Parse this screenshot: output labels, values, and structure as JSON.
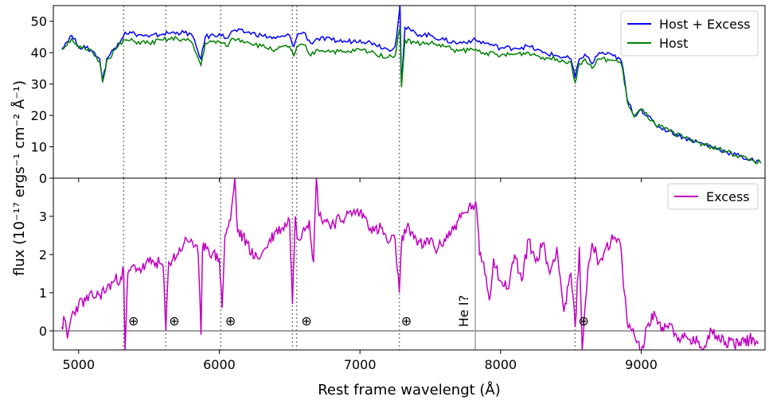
{
  "chart_data": [
    {
      "panel": "top",
      "type": "line",
      "xlim": [
        4820,
        9880
      ],
      "ylim": [
        0,
        55
      ],
      "xticks": [
        5000,
        6000,
        7000,
        8000,
        9000
      ],
      "yticks": [
        0,
        10,
        20,
        30,
        40,
        50
      ],
      "legend": {
        "placement": "top-right",
        "entries": [
          "Host + Excess",
          "Host"
        ]
      },
      "series": [
        {
          "name": "Host + Excess",
          "color": "#0000ff",
          "points": [
            [
              4880,
              41.5
            ],
            [
              4950,
              45.5
            ],
            [
              5000,
              42
            ],
            [
              5050,
              41.5
            ],
            [
              5100,
              40.5
            ],
            [
              5150,
              38
            ],
            [
              5170,
              31
            ],
            [
              5200,
              38
            ],
            [
              5280,
              43
            ],
            [
              5330,
              46.5
            ],
            [
              5400,
              46
            ],
            [
              5500,
              45
            ],
            [
              5600,
              46
            ],
            [
              5700,
              46.5
            ],
            [
              5800,
              46
            ],
            [
              5870,
              38
            ],
            [
              5900,
              45
            ],
            [
              6000,
              46
            ],
            [
              6050,
              44.5
            ],
            [
              6100,
              47
            ],
            [
              6200,
              46.5
            ],
            [
              6300,
              45.5
            ],
            [
              6400,
              44.5
            ],
            [
              6500,
              45.5
            ],
            [
              6530,
              42
            ],
            [
              6560,
              46
            ],
            [
              6600,
              46.5
            ],
            [
              6650,
              43
            ],
            [
              6700,
              44.5
            ],
            [
              6800,
              44
            ],
            [
              6900,
              43.5
            ],
            [
              7000,
              44
            ],
            [
              7100,
              43
            ],
            [
              7200,
              41
            ],
            [
              7250,
              42
            ],
            [
              7270,
              49
            ],
            [
              7285,
              55
            ],
            [
              7295,
              29.5
            ],
            [
              7320,
              48
            ],
            [
              7400,
              46
            ],
            [
              7500,
              45.5
            ],
            [
              7600,
              44
            ],
            [
              7700,
              43
            ],
            [
              7800,
              44
            ],
            [
              7900,
              43
            ],
            [
              8000,
              41.5
            ],
            [
              8100,
              41.5
            ],
            [
              8200,
              42
            ],
            [
              8300,
              40
            ],
            [
              8400,
              39
            ],
            [
              8500,
              38
            ],
            [
              8530,
              32
            ],
            [
              8560,
              38
            ],
            [
              8600,
              39.5
            ],
            [
              8650,
              36.5
            ],
            [
              8700,
              40
            ],
            [
              8800,
              39
            ],
            [
              8850,
              38
            ],
            [
              8870,
              35
            ],
            [
              8900,
              25
            ],
            [
              8950,
              20
            ],
            [
              9000,
              22
            ],
            [
              9100,
              17
            ],
            [
              9200,
              15
            ],
            [
              9300,
              13
            ],
            [
              9400,
              11.5
            ],
            [
              9500,
              10
            ],
            [
              9600,
              8.5
            ],
            [
              9700,
              7
            ],
            [
              9800,
              5.5
            ],
            [
              9850,
              4.8
            ]
          ]
        },
        {
          "name": "Host",
          "color": "#008000",
          "points": [
            [
              4880,
              41
            ],
            [
              4950,
              44.5
            ],
            [
              5000,
              41.5
            ],
            [
              5050,
              41
            ],
            [
              5100,
              40
            ],
            [
              5150,
              37
            ],
            [
              5170,
              30.5
            ],
            [
              5200,
              37.5
            ],
            [
              5280,
              42
            ],
            [
              5330,
              44
            ],
            [
              5400,
              43.5
            ],
            [
              5500,
              43
            ],
            [
              5600,
              44
            ],
            [
              5700,
              44.5
            ],
            [
              5800,
              43.5
            ],
            [
              5870,
              36
            ],
            [
              5900,
              43
            ],
            [
              6000,
              43.5
            ],
            [
              6050,
              42
            ],
            [
              6100,
              44.5
            ],
            [
              6200,
              43.5
            ],
            [
              6300,
              42
            ],
            [
              6400,
              41
            ],
            [
              6500,
              42
            ],
            [
              6530,
              39
            ],
            [
              6560,
              42
            ],
            [
              6600,
              42.5
            ],
            [
              6650,
              39
            ],
            [
              6700,
              41
            ],
            [
              6800,
              40.5
            ],
            [
              6900,
              40
            ],
            [
              7000,
              41
            ],
            [
              7100,
              40
            ],
            [
              7200,
              38.5
            ],
            [
              7250,
              39
            ],
            [
              7270,
              45
            ],
            [
              7285,
              48
            ],
            [
              7295,
              29
            ],
            [
              7320,
              44
            ],
            [
              7400,
              43
            ],
            [
              7500,
              43
            ],
            [
              7600,
              42
            ],
            [
              7700,
              40.5
            ],
            [
              7800,
              41
            ],
            [
              7900,
              40
            ],
            [
              8000,
              39
            ],
            [
              8100,
              39.5
            ],
            [
              8200,
              40
            ],
            [
              8300,
              38.5
            ],
            [
              8400,
              38
            ],
            [
              8500,
              37
            ],
            [
              8530,
              30.5
            ],
            [
              8560,
              36.5
            ],
            [
              8600,
              38
            ],
            [
              8650,
              35
            ],
            [
              8700,
              38
            ],
            [
              8800,
              37.5
            ],
            [
              8850,
              37
            ],
            [
              8870,
              34
            ],
            [
              8900,
              24.5
            ],
            [
              8950,
              19.5
            ],
            [
              9000,
              22
            ],
            [
              9100,
              17
            ],
            [
              9200,
              15
            ],
            [
              9300,
              13
            ],
            [
              9400,
              11.5
            ],
            [
              9500,
              10
            ],
            [
              9600,
              8.5
            ],
            [
              9700,
              7
            ],
            [
              9800,
              5.5
            ],
            [
              9850,
              4.8
            ]
          ]
        }
      ]
    },
    {
      "panel": "bottom",
      "type": "line",
      "xlim": [
        4820,
        9880
      ],
      "ylim": [
        -0.5,
        4.0
      ],
      "xticks": [
        5000,
        6000,
        7000,
        8000,
        9000
      ],
      "yticks": [
        0,
        1,
        2,
        3
      ],
      "xlabel": "Rest frame wavelengt (Å)",
      "shared_ylabel": "flux (10⁻¹⁷ ergs⁻¹ cm⁻² Å⁻¹)",
      "legend": {
        "placement": "top-right",
        "entries": [
          "Excess"
        ]
      },
      "series": [
        {
          "name": "Excess",
          "color": "#bf00bf",
          "points": [
            [
              4880,
              0.1
            ],
            [
              4900,
              0.3
            ],
            [
              4920,
              -0.2
            ],
            [
              4950,
              0.4
            ],
            [
              5000,
              0.7
            ],
            [
              5050,
              0.8
            ],
            [
              5100,
              0.9
            ],
            [
              5150,
              0.95
            ],
            [
              5200,
              1.1
            ],
            [
              5250,
              1.3
            ],
            [
              5300,
              1.4
            ],
            [
              5320,
              1.6
            ],
            [
              5330,
              -0.5
            ],
            [
              5350,
              1.5
            ],
            [
              5400,
              1.7
            ],
            [
              5450,
              1.6
            ],
            [
              5500,
              1.8
            ],
            [
              5550,
              1.8
            ],
            [
              5600,
              1.7
            ],
            [
              5620,
              0
            ],
            [
              5640,
              1.8
            ],
            [
              5700,
              2.0
            ],
            [
              5750,
              2.3
            ],
            [
              5800,
              2.4
            ],
            [
              5850,
              2.0
            ],
            [
              5870,
              -0.1
            ],
            [
              5880,
              2.1
            ],
            [
              5900,
              2.3
            ],
            [
              5950,
              2.0
            ],
            [
              6000,
              1.9
            ],
            [
              6020,
              0.6
            ],
            [
              6040,
              2.5
            ],
            [
              6080,
              2.9
            ],
            [
              6110,
              4.0
            ],
            [
              6130,
              2.6
            ],
            [
              6200,
              2.3
            ],
            [
              6250,
              1.9
            ],
            [
              6300,
              2.0
            ],
            [
              6350,
              2.3
            ],
            [
              6400,
              2.6
            ],
            [
              6450,
              2.7
            ],
            [
              6500,
              2.9
            ],
            [
              6520,
              0.7
            ],
            [
              6540,
              3.0
            ],
            [
              6560,
              2.4
            ],
            [
              6600,
              2.7
            ],
            [
              6640,
              2.9
            ],
            [
              6670,
              1.8
            ],
            [
              6690,
              4.0
            ],
            [
              6710,
              3.0
            ],
            [
              6800,
              2.8
            ],
            [
              6900,
              3.0
            ],
            [
              6950,
              3.1
            ],
            [
              7000,
              3.1
            ],
            [
              7050,
              2.9
            ],
            [
              7100,
              2.6
            ],
            [
              7150,
              2.7
            ],
            [
              7200,
              2.3
            ],
            [
              7250,
              2.4
            ],
            [
              7280,
              1.0
            ],
            [
              7300,
              2.5
            ],
            [
              7350,
              2.7
            ],
            [
              7400,
              2.4
            ],
            [
              7450,
              2.2
            ],
            [
              7500,
              2.4
            ],
            [
              7550,
              2.1
            ],
            [
              7600,
              2.4
            ],
            [
              7650,
              2.6
            ],
            [
              7700,
              2.9
            ],
            [
              7750,
              3.1
            ],
            [
              7800,
              3.3
            ],
            [
              7830,
              3.2
            ],
            [
              7850,
              2.0
            ],
            [
              7880,
              1.8
            ],
            [
              7920,
              0.8
            ],
            [
              7950,
              1.9
            ],
            [
              8000,
              1.3
            ],
            [
              8050,
              1.1
            ],
            [
              8100,
              2.0
            ],
            [
              8150,
              1.3
            ],
            [
              8200,
              2.4
            ],
            [
              8250,
              1.8
            ],
            [
              8300,
              2.3
            ],
            [
              8350,
              1.5
            ],
            [
              8400,
              2.2
            ],
            [
              8450,
              0.5
            ],
            [
              8500,
              1.5
            ],
            [
              8530,
              0.1
            ],
            [
              8560,
              2.2
            ],
            [
              8580,
              -0.5
            ],
            [
              8620,
              1.6
            ],
            [
              8650,
              2.3
            ],
            [
              8700,
              1.8
            ],
            [
              8750,
              2.2
            ],
            [
              8800,
              2.4
            ],
            [
              8850,
              2.3
            ],
            [
              8880,
              1.0
            ],
            [
              8900,
              0.2
            ],
            [
              8950,
              -0.1
            ],
            [
              9000,
              -0.5
            ],
            [
              9050,
              0.2
            ],
            [
              9100,
              0.4
            ],
            [
              9150,
              0.1
            ],
            [
              9200,
              0.2
            ],
            [
              9250,
              -0.1
            ],
            [
              9300,
              -0.2
            ],
            [
              9400,
              -0.3
            ],
            [
              9450,
              -0.4
            ],
            [
              9500,
              0.0
            ],
            [
              9550,
              -0.1
            ],
            [
              9600,
              -0.3
            ],
            [
              9700,
              -0.3
            ],
            [
              9800,
              -0.2
            ],
            [
              9830,
              -0.35
            ]
          ]
        }
      ],
      "reference_lines": {
        "dotted": [
          5320,
          5620,
          6010,
          6520,
          6550,
          7280,
          8530
        ],
        "solid": [
          7820
        ],
        "horizontal_zero": 0
      },
      "annotations": [
        {
          "text": "⊕",
          "x": 5390,
          "y": 0.15
        },
        {
          "text": "⊕",
          "x": 5680,
          "y": 0.15
        },
        {
          "text": "⊕",
          "x": 6080,
          "y": 0.15
        },
        {
          "text": "⊕",
          "x": 6620,
          "y": 0.15
        },
        {
          "text": "⊕",
          "x": 7330,
          "y": 0.15
        },
        {
          "text": "⊕",
          "x": 8590,
          "y": 0.15
        },
        {
          "text": "He I?",
          "x": 7770,
          "y": 0.1,
          "rotated": true
        }
      ]
    }
  ]
}
